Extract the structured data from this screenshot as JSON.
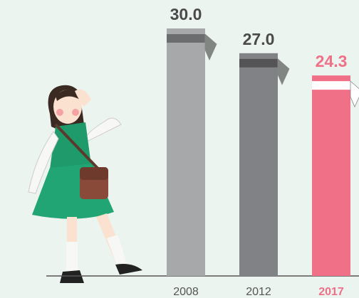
{
  "chart_data": {
    "type": "bar",
    "categories": [
      "2008",
      "2012",
      "2017"
    ],
    "values": [
      30.0,
      27.0,
      24.3
    ],
    "value_labels": [
      "30.0",
      "27.0",
      "24.3"
    ],
    "colors": [
      "#a7a8aa",
      "#818285",
      "#f07088"
    ],
    "label_colors": [
      "#4a4a4a",
      "#4a4a4a",
      "#f07088"
    ]
  }
}
